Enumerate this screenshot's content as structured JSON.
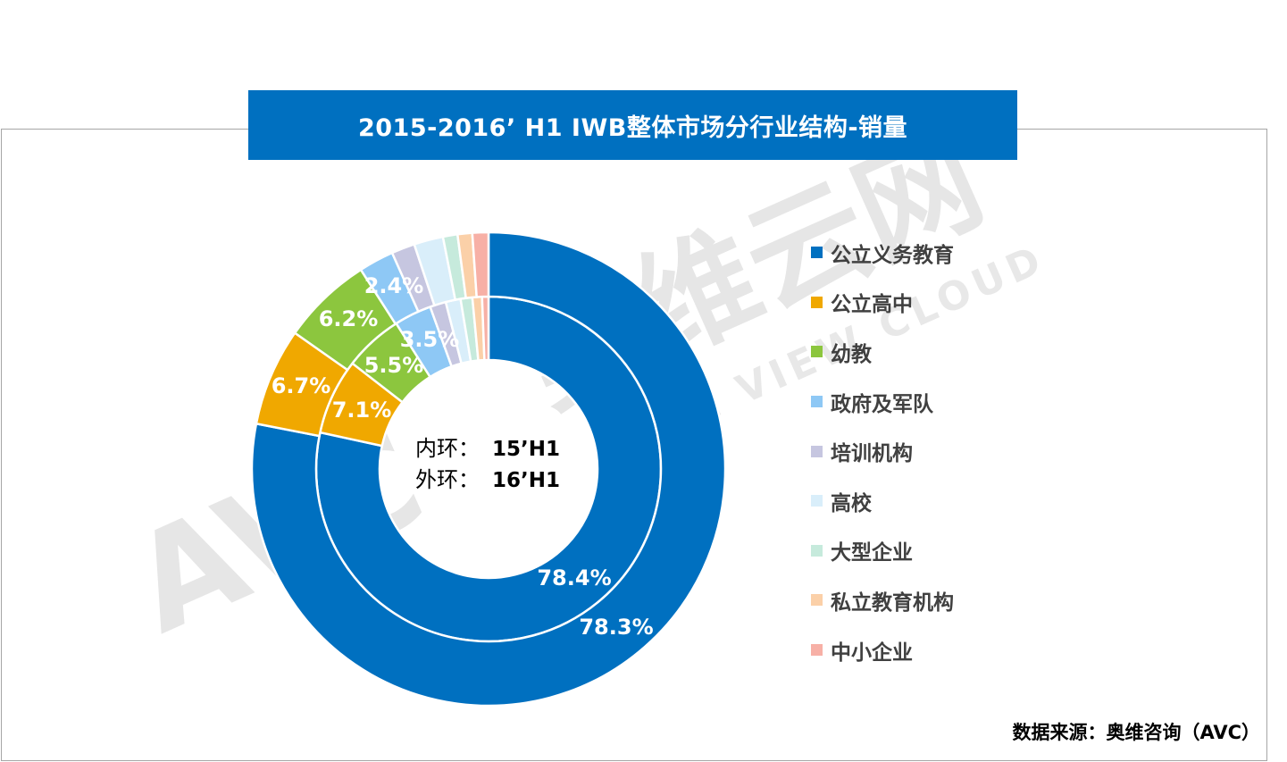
{
  "title": "2015-2016’ H1 IWB整体市场分行业结构-销量",
  "center_text": {
    "inner_label": "内环：",
    "inner_value": "15’H1",
    "outer_label": "外环：",
    "outer_value": "16’H1"
  },
  "watermark": {
    "brand": "奥维云网",
    "latin": "ALL VIEW CLOUD",
    "logo": "AVC"
  },
  "source": {
    "prefix": "数据来源：奥维咨询（",
    "code": "AVC",
    "suffix": "）"
  },
  "chart_data": {
    "type": "donut",
    "categories": [
      "公立义务教育",
      "公立高中",
      "幼教",
      "政府及军队",
      "培训机构",
      "高校",
      "大型企业",
      "私立教育机构",
      "中小企业"
    ],
    "colors": [
      "#0070c0",
      "#f0a800",
      "#8cc63e",
      "#8ec8f5",
      "#c6c6e0",
      "#d9eefa",
      "#c6eadc",
      "#fbd0a8",
      "#f7b0a6"
    ],
    "series": [
      {
        "name": "15’H1",
        "ring": "inner",
        "values": [
          78.4,
          7.1,
          5.5,
          3.5,
          1.5,
          1.4,
          1.1,
          0.9,
          0.6
        ],
        "labels": [
          "78.4%",
          "7.1%",
          "5.5%",
          "3.5%",
          "",
          "",
          "",
          "",
          ""
        ]
      },
      {
        "name": "16’H1",
        "ring": "outer",
        "values": [
          78.3,
          6.7,
          6.2,
          2.4,
          1.6,
          2.0,
          1.0,
          1.0,
          1.1
        ],
        "labels": [
          "78.3%",
          "6.7%",
          "6.2%",
          "2.4%",
          "",
          "",
          "",
          "",
          ""
        ]
      }
    ],
    "legend_position": "right"
  }
}
